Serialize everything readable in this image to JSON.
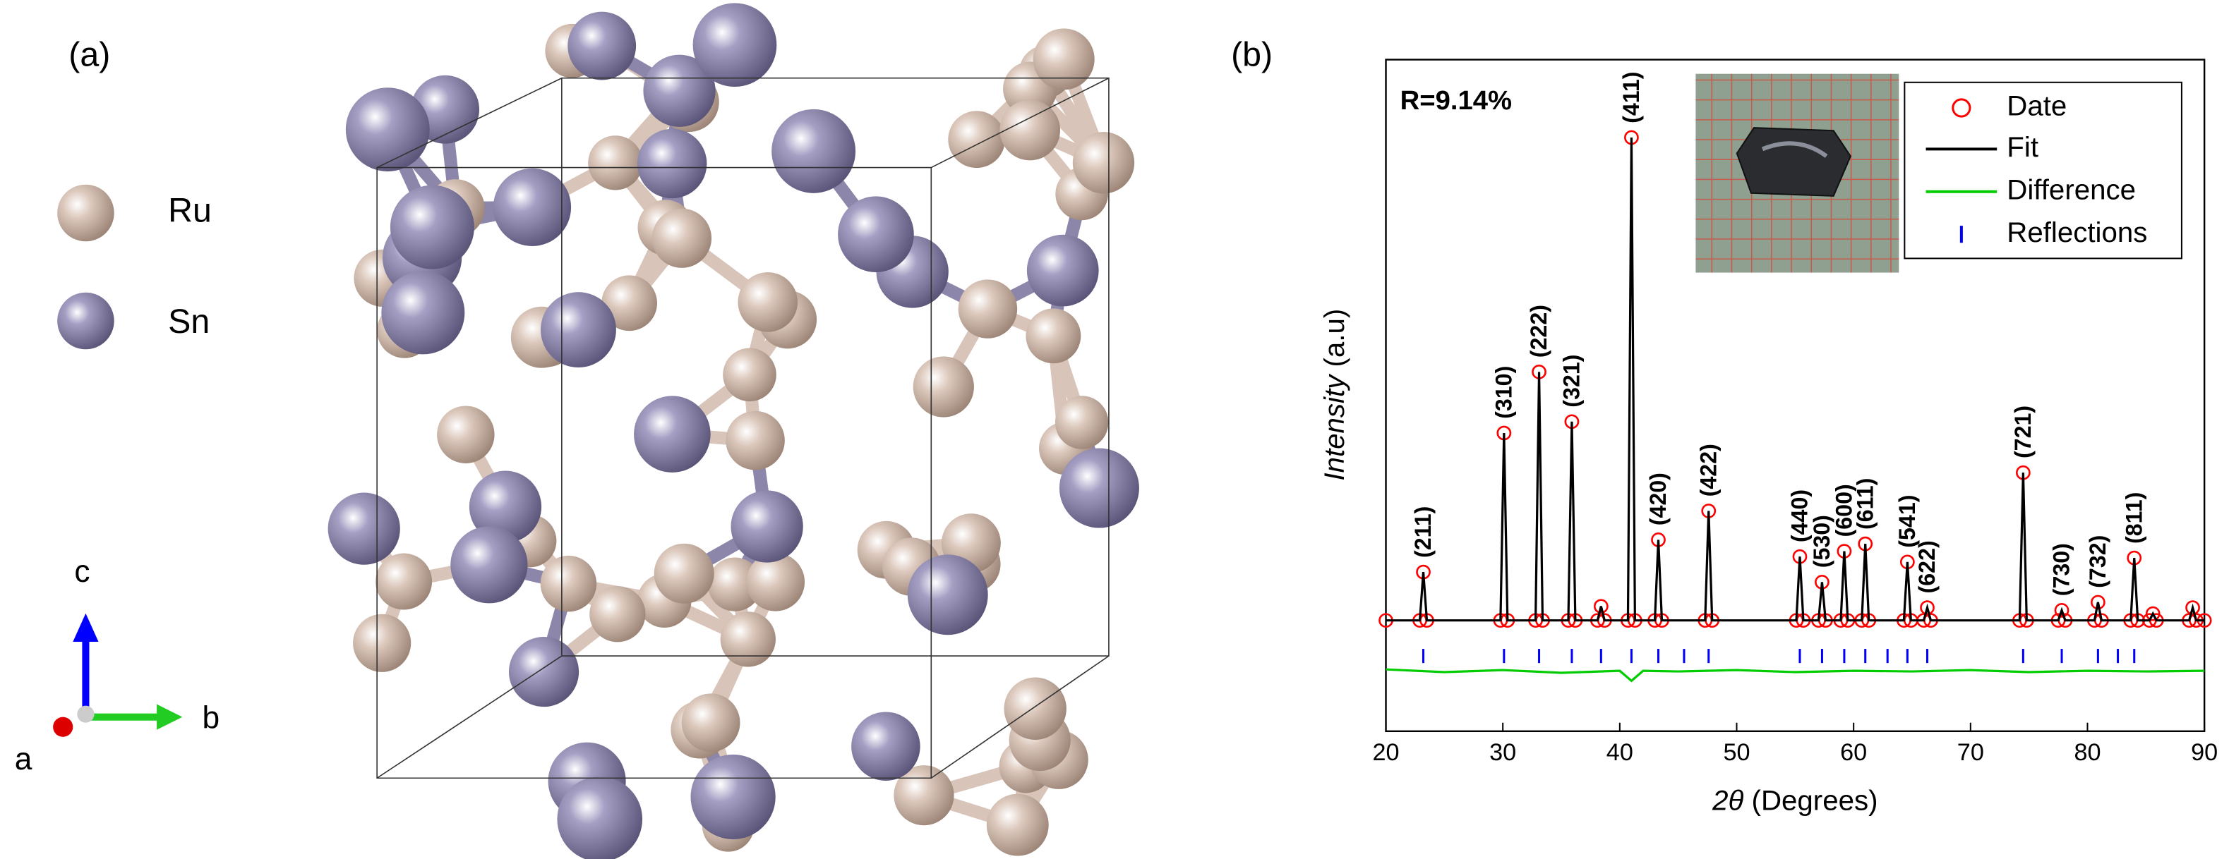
{
  "panel_a": {
    "label": "(a)",
    "legend": [
      "Ru",
      "Sn"
    ],
    "axes": {
      "c": "c",
      "b": "b",
      "a": "a"
    }
  },
  "chart_data": {
    "type": "line",
    "panel": "(b)",
    "annotation": "R=9.14%",
    "xlabel": {
      "italic": "2θ",
      "rest": " (Degrees)"
    },
    "ylabel": {
      "italic": "Intensity",
      "rest": " (a.u)"
    },
    "xlim": [
      20,
      90
    ],
    "xticks": [
      20,
      30,
      40,
      50,
      60,
      70,
      80,
      90
    ],
    "ylim": [
      0,
      100
    ],
    "yticks": [],
    "legend": "upper right",
    "series": [
      {
        "name": "Date",
        "color": "#ff0000",
        "marker": "circle",
        "x": [
          20,
          22.9,
          23.2,
          23.5,
          29.8,
          30.1,
          30.4,
          32.8,
          33.1,
          33.4,
          35.6,
          35.9,
          36.2,
          38.1,
          38.4,
          38.7,
          40.7,
          41.0,
          41.3,
          43.0,
          43.3,
          43.6,
          47.3,
          47.6,
          47.9,
          55.1,
          55.4,
          55.7,
          57.0,
          57.3,
          57.6,
          58.9,
          59.2,
          59.5,
          60.7,
          61.0,
          61.3,
          64.3,
          64.6,
          64.9,
          66.0,
          66.3,
          66.6,
          74.2,
          74.5,
          74.8,
          77.5,
          77.8,
          78.1,
          80.6,
          80.9,
          81.2,
          83.7,
          84.0,
          84.3,
          85.3,
          85.6,
          85.9,
          88.7,
          89.0,
          89.3,
          90
        ],
        "values": [
          16.5,
          16.5,
          23.7,
          16.5,
          16.5,
          44.4,
          16.5,
          16.5,
          53.5,
          16.5,
          16.5,
          46.1,
          16.5,
          16.5,
          18.6,
          16.5,
          16.5,
          88.4,
          16.5,
          16.5,
          28.5,
          16.5,
          16.5,
          32.8,
          16.5,
          16.5,
          26.0,
          16.5,
          16.5,
          22.2,
          16.5,
          16.5,
          26.8,
          16.5,
          16.5,
          27.9,
          16.5,
          16.5,
          25.2,
          16.5,
          16.5,
          18.4,
          16.5,
          16.5,
          38.5,
          16.5,
          16.5,
          18.0,
          16.5,
          16.5,
          19.2,
          16.5,
          16.5,
          25.8,
          16.5,
          16.5,
          17.5,
          16.5,
          16.5,
          18.4,
          16.5,
          16.5
        ]
      },
      {
        "name": "Fit",
        "color": "#000000",
        "x": [
          20,
          22.9,
          23.2,
          23.5,
          29.8,
          30.1,
          30.4,
          32.8,
          33.1,
          33.4,
          35.6,
          35.9,
          36.2,
          38.1,
          38.4,
          38.7,
          40.7,
          41.0,
          41.3,
          43.0,
          43.3,
          43.6,
          47.3,
          47.6,
          47.9,
          55.1,
          55.4,
          55.7,
          57.0,
          57.3,
          57.6,
          58.9,
          59.2,
          59.5,
          60.7,
          61.0,
          61.3,
          64.3,
          64.6,
          64.9,
          66.0,
          66.3,
          66.6,
          74.2,
          74.5,
          74.8,
          77.5,
          77.8,
          78.1,
          80.6,
          80.9,
          81.2,
          83.7,
          84.0,
          84.3,
          85.3,
          85.6,
          85.9,
          88.7,
          89.0,
          89.3,
          90
        ],
        "values": [
          16.5,
          16.5,
          23.7,
          16.5,
          16.5,
          44.4,
          16.5,
          16.5,
          53.5,
          16.5,
          16.5,
          46.1,
          16.5,
          16.5,
          18.6,
          16.5,
          16.5,
          88.4,
          16.5,
          16.5,
          28.5,
          16.5,
          16.5,
          32.8,
          16.5,
          16.5,
          26.0,
          16.5,
          16.5,
          22.2,
          16.5,
          16.5,
          26.8,
          16.5,
          16.5,
          27.9,
          16.5,
          16.5,
          25.2,
          16.5,
          16.5,
          18.4,
          16.5,
          16.5,
          38.5,
          16.5,
          16.5,
          18.0,
          16.5,
          16.5,
          19.2,
          16.5,
          16.5,
          25.8,
          16.5,
          16.5,
          17.5,
          16.5,
          16.5,
          18.4,
          16.5,
          16.5
        ]
      },
      {
        "name": "Difference",
        "color": "#00cc00",
        "x": [
          20,
          25,
          30,
          35,
          40,
          41,
          42,
          45,
          50,
          55,
          60,
          65,
          70,
          75,
          80,
          85,
          90
        ],
        "values": [
          9.2,
          8.8,
          9.1,
          8.7,
          9.0,
          7.5,
          9.0,
          8.9,
          9.1,
          8.8,
          9.0,
          8.9,
          9.1,
          8.8,
          9.0,
          8.9,
          9.0
        ]
      }
    ],
    "reflections": {
      "name": "Reflections",
      "color": "#0000ff",
      "x": [
        23.2,
        30.1,
        33.1,
        35.9,
        38.4,
        41.0,
        43.3,
        45.5,
        47.6,
        55.4,
        57.3,
        59.2,
        61.0,
        62.9,
        64.6,
        66.3,
        74.5,
        77.8,
        80.9,
        82.6,
        84.0
      ]
    },
    "peak_labels": [
      {
        "text": "(211)",
        "x": 23.2
      },
      {
        "text": "(310)",
        "x": 30.1
      },
      {
        "text": "(222)",
        "x": 33.1
      },
      {
        "text": "(321)",
        "x": 35.9
      },
      {
        "text": "(411)",
        "x": 41.0
      },
      {
        "text": "(420)",
        "x": 43.3
      },
      {
        "text": "(422)",
        "x": 47.6
      },
      {
        "text": "(440)",
        "x": 55.4
      },
      {
        "text": "(530)",
        "x": 57.3
      },
      {
        "text": "(600)",
        "x": 59.2
      },
      {
        "text": "(611)",
        "x": 61.0
      },
      {
        "text": "(541)",
        "x": 64.6
      },
      {
        "text": "(622)",
        "x": 66.3
      },
      {
        "text": "(721)",
        "x": 74.5
      },
      {
        "text": "(730)",
        "x": 77.8
      },
      {
        "text": "(732)",
        "x": 80.9
      },
      {
        "text": "(811)",
        "x": 84.0
      }
    ]
  }
}
